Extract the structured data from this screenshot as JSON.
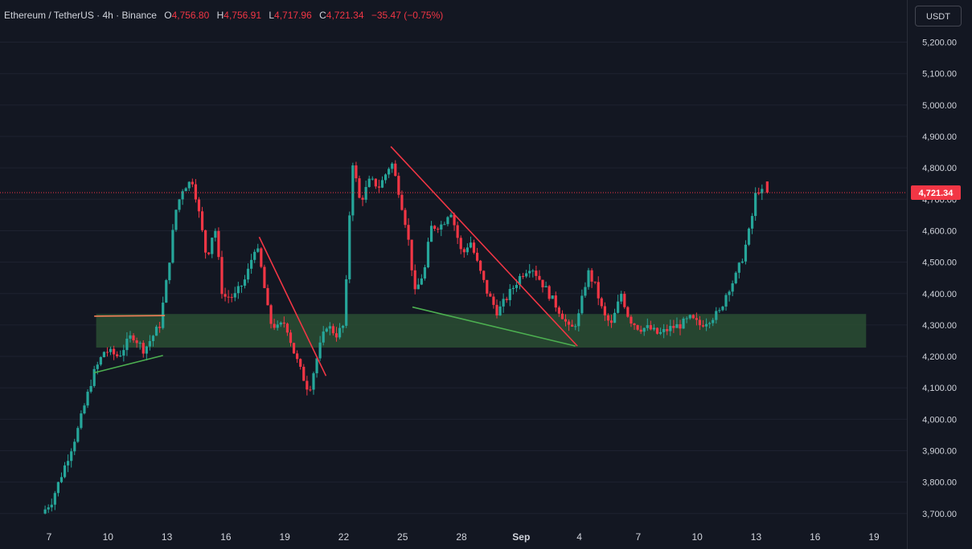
{
  "legend": {
    "symbol": "Ethereum / TetherUS · 4h · Binance",
    "o_label": "O",
    "o_value": "4,756.80",
    "h_label": "H",
    "h_value": "4,756.91",
    "l_label": "L",
    "l_value": "4,717.96",
    "c_label": "C",
    "c_value": "4,721.34",
    "change": "−35.47 (−0.75%)"
  },
  "currency_button": "USDT",
  "colors": {
    "background": "#131722",
    "up": "#26a69a",
    "down": "#f23645",
    "zone": "#2a4d33",
    "text": "#d1d4dc",
    "trend_red": "#f23645",
    "trend_green": "#4caf50",
    "trend_orange": "#f57f59"
  },
  "chart_data": {
    "type": "candlestick",
    "interval": "4h",
    "y_axis": {
      "ticks": [
        "5,200.00",
        "5,100.00",
        "5,000.00",
        "4,900.00",
        "4,800.00",
        "4,700.00",
        "4,600.00",
        "4,500.00",
        "4,400.00",
        "4,300.00",
        "4,200.00",
        "4,100.00",
        "4,000.00",
        "3,900.00",
        "3,800.00",
        "3,700.00"
      ],
      "tick_values": [
        5200,
        5100,
        5000,
        4900,
        4800,
        4700,
        4600,
        4500,
        4400,
        4300,
        4200,
        4100,
        4000,
        3900,
        3800,
        3700
      ],
      "range": [
        3650,
        5250
      ]
    },
    "x_axis": {
      "ticks": [
        "7",
        "10",
        "13",
        "16",
        "19",
        "22",
        "25",
        "28",
        "Sep",
        "4",
        "7",
        "10",
        "13",
        "16",
        "19"
      ],
      "tick_days": [
        7,
        10,
        13,
        16,
        19,
        22,
        25,
        28,
        31,
        34,
        37,
        40,
        43,
        46,
        49
      ]
    },
    "last_price": 4721.34,
    "last_price_label": "4,721.34",
    "support_zone": {
      "start_day": 9.4,
      "end_day": 48.6,
      "low": 4228,
      "high": 4335
    },
    "trendlines": [
      {
        "color": "orange",
        "from": [
          9.3,
          4328
        ],
        "to": [
          12.9,
          4330
        ]
      },
      {
        "color": "green",
        "from": [
          9.3,
          4148
        ],
        "to": [
          12.8,
          4203
        ]
      },
      {
        "color": "red",
        "from": [
          17.7,
          4580
        ],
        "to": [
          21.1,
          4138
        ]
      },
      {
        "color": "red",
        "from": [
          24.4,
          4868
        ],
        "to": [
          33.9,
          4233
        ]
      },
      {
        "color": "green",
        "from": [
          25.5,
          4357
        ],
        "to": [
          33.8,
          4233
        ]
      }
    ],
    "price_path": [
      [
        6.8,
        3700
      ],
      [
        7.3,
        3740
      ],
      [
        7.9,
        3840
      ],
      [
        8.6,
        3960
      ],
      [
        9.4,
        4140
      ],
      [
        10.0,
        4220
      ],
      [
        10.7,
        4200
      ],
      [
        11.4,
        4270
      ],
      [
        12.0,
        4220
      ],
      [
        12.8,
        4300
      ],
      [
        13.2,
        4460
      ],
      [
        13.6,
        4660
      ],
      [
        14.0,
        4740
      ],
      [
        14.5,
        4760
      ],
      [
        14.9,
        4620
      ],
      [
        15.2,
        4510
      ],
      [
        15.6,
        4620
      ],
      [
        16.0,
        4390
      ],
      [
        16.6,
        4390
      ],
      [
        17.2,
        4450
      ],
      [
        17.7,
        4560
      ],
      [
        18.0,
        4470
      ],
      [
        18.4,
        4310
      ],
      [
        18.8,
        4290
      ],
      [
        19.2,
        4310
      ],
      [
        19.6,
        4220
      ],
      [
        20.0,
        4150
      ],
      [
        20.4,
        4090
      ],
      [
        20.9,
        4220
      ],
      [
        21.3,
        4300
      ],
      [
        21.8,
        4270
      ],
      [
        22.2,
        4300
      ],
      [
        22.6,
        4830
      ],
      [
        23.0,
        4690
      ],
      [
        23.5,
        4760
      ],
      [
        24.0,
        4740
      ],
      [
        24.6,
        4820
      ],
      [
        25.0,
        4720
      ],
      [
        25.4,
        4600
      ],
      [
        25.8,
        4400
      ],
      [
        26.3,
        4480
      ],
      [
        26.6,
        4610
      ],
      [
        27.2,
        4620
      ],
      [
        27.6,
        4670
      ],
      [
        28.2,
        4520
      ],
      [
        28.6,
        4570
      ],
      [
        29.0,
        4490
      ],
      [
        29.5,
        4400
      ],
      [
        30.0,
        4340
      ],
      [
        30.6,
        4400
      ],
      [
        31.2,
        4460
      ],
      [
        31.7,
        4490
      ],
      [
        32.2,
        4440
      ],
      [
        32.7,
        4390
      ],
      [
        33.3,
        4330
      ],
      [
        33.7,
        4280
      ],
      [
        34.1,
        4320
      ],
      [
        34.6,
        4470
      ],
      [
        35.0,
        4420
      ],
      [
        35.4,
        4330
      ],
      [
        35.8,
        4300
      ],
      [
        36.3,
        4400
      ],
      [
        36.7,
        4320
      ],
      [
        37.2,
        4290
      ],
      [
        37.7,
        4290
      ],
      [
        38.2,
        4270
      ],
      [
        38.8,
        4290
      ],
      [
        39.3,
        4300
      ],
      [
        39.8,
        4320
      ],
      [
        40.3,
        4300
      ],
      [
        40.8,
        4320
      ],
      [
        41.3,
        4340
      ],
      [
        41.7,
        4410
      ],
      [
        42.1,
        4450
      ],
      [
        42.5,
        4520
      ],
      [
        42.9,
        4620
      ],
      [
        43.2,
        4740
      ],
      [
        43.4,
        4721
      ]
    ]
  }
}
